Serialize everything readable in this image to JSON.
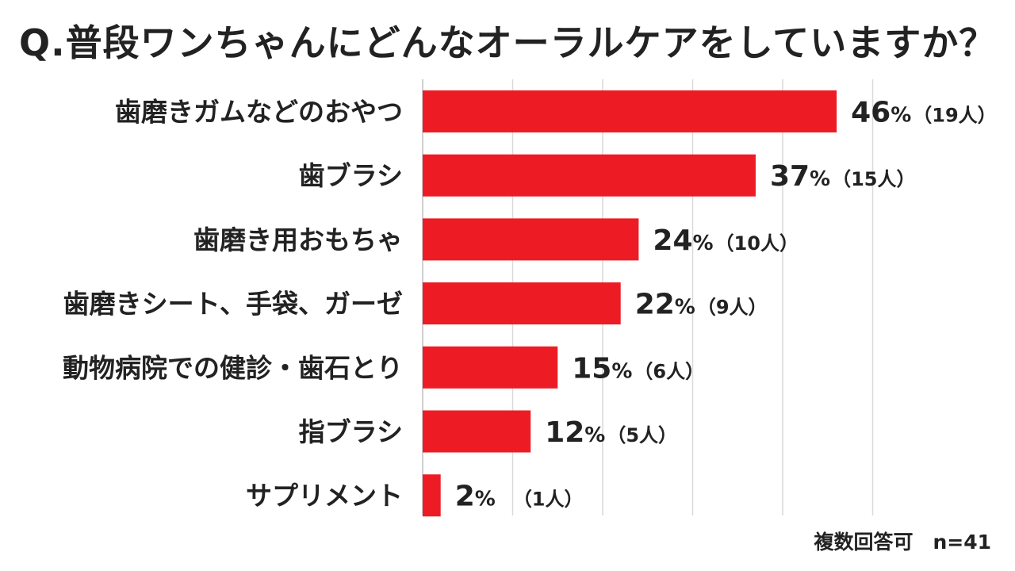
{
  "title": "Q.普段ワンちゃんにどんなオーラルケアをしていますか？",
  "footnote": "複数回答可　n=41",
  "colors": {
    "bar": "#ed1c24",
    "grid": "#d9d9d9",
    "axis": "#bfbfbf",
    "text": "#222222"
  },
  "chart_data": {
    "type": "bar",
    "orientation": "horizontal",
    "title": "Q.普段ワンちゃんにどんなオーラルケアをしていますか？",
    "categories": [
      "歯磨きガムなどのおやつ",
      "歯ブラシ",
      "歯磨き用おもちゃ",
      "歯磨きシート、手袋、ガーゼ",
      "動物病院での健診・歯石とり",
      "指ブラシ",
      "サプリメント"
    ],
    "values": [
      46,
      37,
      24,
      22,
      15,
      12,
      2
    ],
    "value_labels": [
      "46",
      "37",
      "24",
      "22",
      "15",
      "12",
      "2"
    ],
    "unit": "%",
    "counts": [
      "（19人）",
      "（15人）",
      "（10人）",
      "（9人）",
      "（6人）",
      "（5人）",
      "（1人）"
    ],
    "xlim": [
      0,
      50
    ],
    "grid": true,
    "legend": "none"
  }
}
